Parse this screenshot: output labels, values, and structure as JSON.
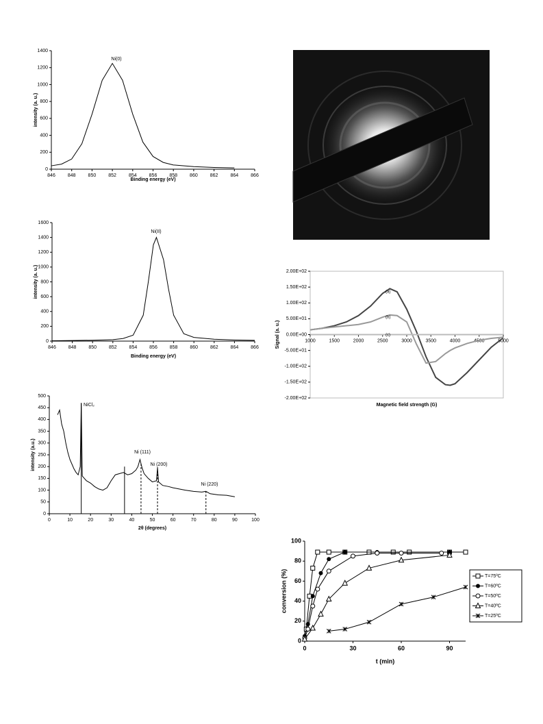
{
  "chart_data": [
    {
      "type": "line",
      "annotations": [
        "Ni(0)"
      ],
      "x_label": "Binding energy (eV)",
      "y_label": "intensity (a. u.)",
      "color": "#000000",
      "x": [
        846,
        847,
        848,
        849,
        850,
        851,
        852,
        853,
        854,
        855,
        856,
        857,
        858,
        860,
        862,
        864
      ],
      "values": [
        40,
        60,
        120,
        300,
        650,
        1050,
        1250,
        1050,
        650,
        320,
        150,
        80,
        50,
        30,
        20,
        15
      ],
      "xlim": [
        846,
        866
      ],
      "xticks": [
        846,
        848,
        850,
        852,
        854,
        856,
        858,
        860,
        862,
        864,
        866
      ],
      "ylim": [
        0,
        1400
      ],
      "yticks": [
        0,
        200,
        400,
        600,
        800,
        1000,
        1200,
        1400
      ]
    },
    {
      "type": "line",
      "annotations": [
        "Ni(II)"
      ],
      "x_label": "Binding energy (eV)",
      "y_label": "intensity (a. u.)",
      "color": "#000000",
      "x": [
        846,
        848,
        850,
        852,
        853,
        854,
        855,
        855.5,
        856,
        856.3,
        857,
        857.5,
        858,
        859,
        860,
        862,
        864,
        866
      ],
      "values": [
        5,
        8,
        12,
        20,
        35,
        80,
        350,
        800,
        1300,
        1400,
        1100,
        700,
        350,
        100,
        50,
        25,
        15,
        10
      ],
      "xlim": [
        846,
        866
      ],
      "xticks": [
        846,
        848,
        850,
        852,
        854,
        856,
        858,
        860,
        862,
        864,
        866
      ],
      "ylim": [
        0,
        1600
      ],
      "yticks": [
        0,
        200,
        400,
        600,
        800,
        1000,
        1200,
        1400,
        1600
      ]
    },
    {
      "type": "line",
      "annotations": [
        "NiCl₂",
        "Ni (111)",
        "Ni (200)",
        "Ni (220)"
      ],
      "x_label": "2θ (degrees)",
      "y_label": "intensity (a.u.)",
      "color": "#000000",
      "x": [
        4,
        5,
        6,
        7,
        8,
        9,
        10,
        11,
        12,
        13,
        14,
        15,
        15.5,
        16,
        17,
        18,
        20,
        22,
        24,
        26,
        28,
        30,
        32,
        34,
        36,
        38,
        40,
        42,
        43,
        44,
        45,
        46,
        48,
        50,
        52,
        52.5,
        53,
        55,
        58,
        60,
        63,
        66,
        70,
        74,
        76,
        78,
        82,
        86,
        90
      ],
      "values": [
        420,
        440,
        380,
        350,
        300,
        260,
        230,
        210,
        190,
        175,
        165,
        200,
        470,
        160,
        150,
        140,
        130,
        115,
        105,
        100,
        110,
        140,
        165,
        170,
        175,
        165,
        170,
        185,
        200,
        230,
        195,
        170,
        150,
        135,
        140,
        195,
        135,
        120,
        115,
        110,
        105,
        100,
        95,
        92,
        95,
        85,
        80,
        78,
        72
      ],
      "reference_lines": [
        {
          "x": 15.5,
          "height": 470,
          "style": "solid"
        },
        {
          "x": 36.5,
          "height": 200,
          "style": "solid"
        },
        {
          "x": 44.5,
          "height": 215,
          "style": "dashed"
        },
        {
          "x": 52.5,
          "height": 200,
          "style": "dashed"
        },
        {
          "x": 76,
          "height": 100,
          "style": "dashed"
        }
      ],
      "xlim": [
        0,
        100
      ],
      "xticks": [
        0,
        10,
        20,
        30,
        40,
        50,
        60,
        70,
        80,
        90,
        100
      ],
      "ylim": [
        0,
        500
      ],
      "yticks": [
        0,
        50,
        100,
        150,
        200,
        250,
        300,
        350,
        400,
        450,
        500
      ]
    },
    {
      "type": "line",
      "x_label": "Magnetic field strength (G)",
      "y_label": "Signal (a. u.)",
      "x": [
        1000,
        1250,
        1500,
        1750,
        2000,
        2250,
        2500,
        2650,
        2800,
        3000,
        3200,
        3400,
        3600,
        3800,
        3900,
        4000,
        4250,
        4500,
        4750,
        5000
      ],
      "series": [
        {
          "name": "(a)",
          "color": "#444444",
          "values": [
            15,
            20,
            28,
            40,
            60,
            90,
            130,
            145,
            135,
            80,
            10,
            -70,
            -135,
            -158,
            -160,
            -155,
            -120,
            -80,
            -40,
            -10
          ]
        },
        {
          "name": "(b)",
          "color": "#999999",
          "values": [
            15,
            20,
            24,
            28,
            32,
            40,
            55,
            62,
            60,
            40,
            -30,
            -90,
            -85,
            -60,
            -50,
            -42,
            -28,
            -18,
            -12,
            -8
          ]
        },
        {
          "name": "(c)",
          "color": "#bbbbbb",
          "values": [
            0,
            0,
            0,
            0,
            0,
            0,
            0,
            0,
            0,
            0,
            0,
            0,
            0,
            0,
            0,
            0,
            0,
            0,
            0,
            0
          ]
        }
      ],
      "xlim": [
        1000,
        5000
      ],
      "xticks": [
        1000,
        1500,
        2000,
        2500,
        3000,
        3500,
        4000,
        4500,
        5000
      ],
      "ylim": [
        -200,
        200
      ],
      "yticks": [
        {
          "value": -200,
          "label": "-2.00E+02"
        },
        {
          "value": -150,
          "label": "-1.50E+02"
        },
        {
          "value": -100,
          "label": "-1.00E+02"
        },
        {
          "value": -50,
          "label": "-5.00E+01"
        },
        {
          "value": 0,
          "label": "0.00E+00"
        },
        {
          "value": 50,
          "label": "5.00E+01"
        },
        {
          "value": 100,
          "label": "1.00E+02"
        },
        {
          "value": 150,
          "label": "1.50E+02"
        },
        {
          "value": 200,
          "label": "2.00E+02"
        }
      ]
    },
    {
      "type": "line",
      "x_label": "t (min)",
      "y_label": "conversion (%)",
      "series": [
        {
          "name": "T=75ºC",
          "marker": "square-open",
          "color": "#000000",
          "x": [
            1,
            3,
            5,
            8,
            15,
            25,
            40,
            55,
            65,
            90,
            100
          ],
          "values": [
            12,
            45,
            73,
            89,
            89,
            89,
            89,
            89,
            89,
            89,
            89
          ]
        },
        {
          "name": "T=60ºC",
          "marker": "circle-filled",
          "color": "#000000",
          "x": [
            0,
            2,
            5,
            10,
            15,
            25,
            45,
            90
          ],
          "values": [
            5,
            17,
            45,
            68,
            82,
            89,
            89,
            89
          ]
        },
        {
          "name": "T=50ºC",
          "marker": "circle-open",
          "color": "#000000",
          "x": [
            0,
            2,
            5,
            8,
            15,
            30,
            45,
            60,
            85
          ],
          "values": [
            3,
            12,
            35,
            52,
            70,
            85,
            88,
            88,
            88
          ]
        },
        {
          "name": "T=40ºC",
          "marker": "triangle-open",
          "color": "#000000",
          "x": [
            0,
            5,
            10,
            15,
            25,
            40,
            60,
            90
          ],
          "values": [
            2,
            13,
            27,
            42,
            58,
            73,
            81,
            86
          ]
        },
        {
          "name": "T=25ºC",
          "marker": "x",
          "color": "#000000",
          "x": [
            15,
            25,
            40,
            60,
            80,
            100
          ],
          "values": [
            10,
            12,
            19,
            37,
            44,
            54
          ]
        }
      ],
      "xlim": [
        0,
        100
      ],
      "xticks": [
        0,
        30,
        60,
        90
      ],
      "ylim": [
        0,
        100
      ],
      "yticks": [
        0,
        20,
        40,
        60,
        80,
        100
      ]
    }
  ]
}
